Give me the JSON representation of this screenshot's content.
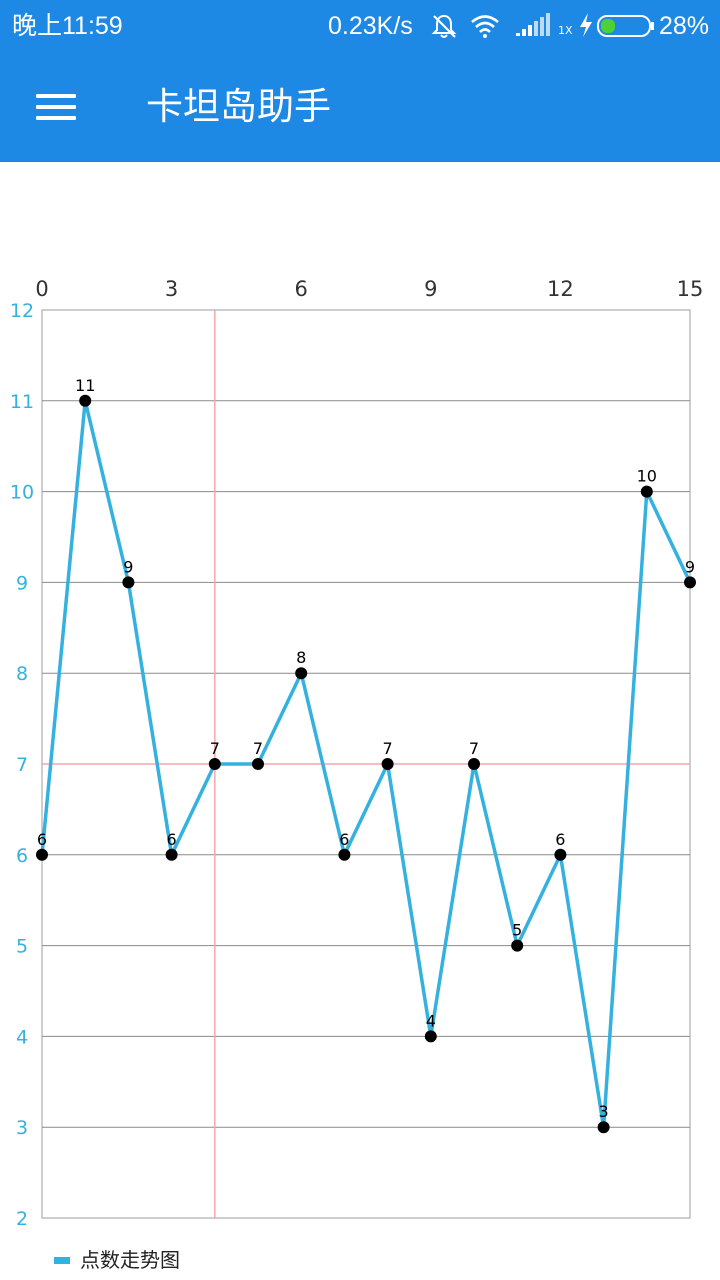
{
  "status_bar": {
    "time": "晚上11:59",
    "network_speed": "0.23K/s",
    "battery_percent": "28%",
    "icons": [
      "bell-muted-icon",
      "wifi-icon",
      "signal-icon",
      "charging-icon",
      "battery-icon"
    ],
    "signal_sub": "1X"
  },
  "app_bar": {
    "menu_icon": "hamburger-menu-icon",
    "title": "卡坦岛助手",
    "background": "#1e88e5"
  },
  "chart_data": {
    "type": "line",
    "x": [
      0,
      1,
      2,
      3,
      4,
      5,
      6,
      7,
      8,
      9,
      10,
      11,
      12,
      13,
      14,
      15
    ],
    "x_ticks": [
      "0",
      "3",
      "6",
      "9",
      "12",
      "15"
    ],
    "x_tick_values": [
      0,
      3,
      6,
      9,
      12,
      15
    ],
    "y_ticks": [
      "2",
      "3",
      "4",
      "5",
      "6",
      "7",
      "8",
      "9",
      "10",
      "11",
      "12"
    ],
    "y_tick_values": [
      2,
      3,
      4,
      5,
      6,
      7,
      8,
      9,
      10,
      11,
      12
    ],
    "xlim": [
      0,
      15
    ],
    "ylim": [
      2,
      12
    ],
    "series": [
      {
        "name": "点数走势图",
        "values": [
          6,
          11,
          9,
          6,
          7,
          7,
          8,
          6,
          7,
          4,
          7,
          5,
          6,
          3,
          10,
          9
        ],
        "labels": [
          "6",
          "11",
          "9",
          "6",
          "7",
          "7",
          "8",
          "6",
          "7",
          "4",
          "7",
          "5",
          "6",
          "3",
          "10",
          "9"
        ],
        "color": "#35b1e0",
        "marker_color": "#000000"
      }
    ],
    "reference_lines": {
      "horizontal_y": 7,
      "vertical_x": 4,
      "color": "#f4a6ad"
    },
    "grid": true,
    "x_axis_position": "top",
    "y_tick_color": "#35b1e0",
    "legend_position": "bottom-left"
  }
}
